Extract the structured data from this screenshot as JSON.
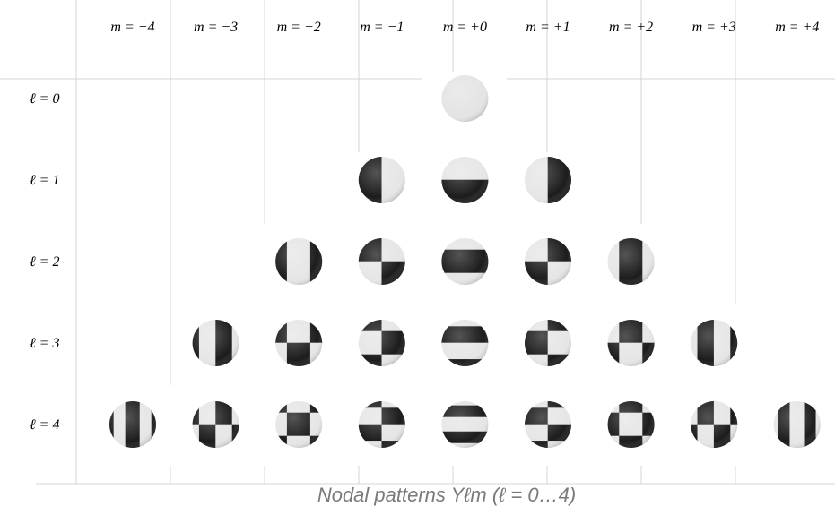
{
  "columns": [
    "m = −4",
    "m = −3",
    "m = −2",
    "m = −1",
    "m = +0",
    "m = +1",
    "m = +2",
    "m = +3",
    "m = +4"
  ],
  "rows": [
    "ℓ = 0",
    "ℓ = 1",
    "ℓ = 2",
    "ℓ = 3",
    "ℓ = 4"
  ],
  "caption": "Nodal patterns  Yℓm  (ℓ = 0…4)"
}
